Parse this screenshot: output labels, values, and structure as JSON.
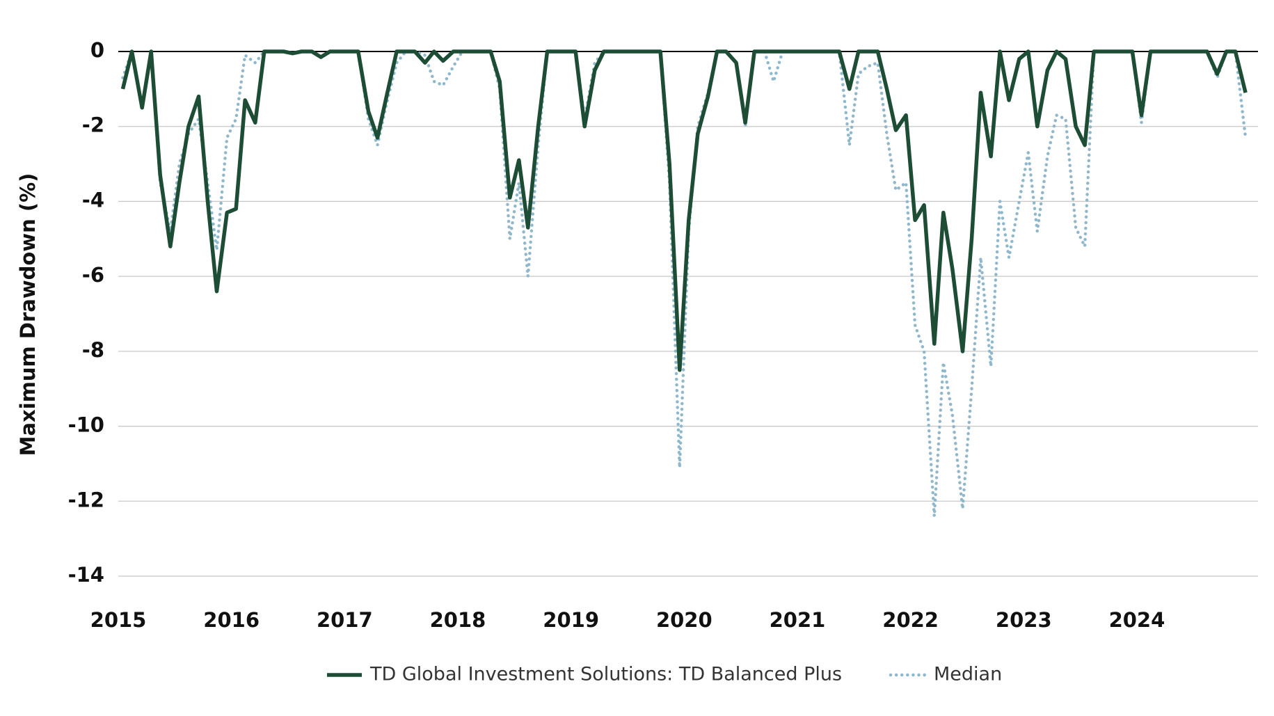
{
  "chart_data": {
    "type": "line",
    "y_label": "Maximum Drawdown (%)",
    "x": [
      2015.04,
      2015.12,
      2015.21,
      2015.29,
      2015.37,
      2015.46,
      2015.54,
      2015.62,
      2015.71,
      2015.79,
      2015.87,
      2015.96,
      2016.04,
      2016.12,
      2016.21,
      2016.29,
      2016.37,
      2016.46,
      2016.54,
      2016.62,
      2016.71,
      2016.79,
      2016.87,
      2016.96,
      2017.04,
      2017.12,
      2017.21,
      2017.29,
      2017.37,
      2017.46,
      2017.54,
      2017.62,
      2017.71,
      2017.79,
      2017.87,
      2017.96,
      2018.04,
      2018.12,
      2018.21,
      2018.29,
      2018.37,
      2018.46,
      2018.54,
      2018.62,
      2018.71,
      2018.79,
      2018.87,
      2018.96,
      2019.04,
      2019.12,
      2019.21,
      2019.29,
      2019.37,
      2019.46,
      2019.54,
      2019.62,
      2019.71,
      2019.79,
      2019.87,
      2019.96,
      2020.04,
      2020.12,
      2020.21,
      2020.29,
      2020.37,
      2020.46,
      2020.54,
      2020.62,
      2020.71,
      2020.79,
      2020.87,
      2020.96,
      2021.04,
      2021.12,
      2021.21,
      2021.29,
      2021.37,
      2021.46,
      2021.54,
      2021.62,
      2021.71,
      2021.79,
      2021.87,
      2021.96,
      2022.04,
      2022.12,
      2022.21,
      2022.29,
      2022.37,
      2022.46,
      2022.54,
      2022.62,
      2022.71,
      2022.79,
      2022.87,
      2022.96,
      2023.04,
      2023.12,
      2023.21,
      2023.29,
      2023.37,
      2023.46,
      2023.54,
      2023.62,
      2023.71,
      2023.79,
      2023.87,
      2023.96,
      2024.04,
      2024.12,
      2024.21,
      2024.29,
      2024.37,
      2024.46,
      2024.54,
      2024.62,
      2024.71,
      2024.79,
      2024.87,
      2024.96
    ],
    "series": [
      {
        "name": "TD Global Investment Solutions: TD Balanced Plus",
        "color": "#1e4d36",
        "style": "solid",
        "values": [
          -1.0,
          0,
          -1.5,
          0,
          -3.3,
          -5.2,
          -3.5,
          -2.0,
          -1.2,
          -4.0,
          -6.4,
          -4.3,
          -4.2,
          -1.3,
          -1.9,
          0,
          0,
          0,
          -0.05,
          0,
          0,
          -0.15,
          0,
          0,
          0,
          0,
          -1.6,
          -2.3,
          -1.2,
          0,
          0,
          0,
          -0.3,
          0,
          -0.25,
          0,
          0,
          0,
          0,
          0,
          -0.8,
          -3.9,
          -2.9,
          -4.7,
          -2.0,
          0,
          0,
          0,
          0,
          -2.0,
          -0.5,
          0,
          0,
          0,
          0,
          0,
          0,
          0,
          -3.0,
          -8.5,
          -4.5,
          -2.2,
          -1.2,
          0,
          0,
          -0.3,
          -1.9,
          0,
          0,
          0,
          0,
          0,
          0,
          0,
          0,
          0,
          0,
          -1.0,
          0,
          0,
          0,
          -1.0,
          -2.1,
          -1.7,
          -4.5,
          -4.1,
          -7.8,
          -4.3,
          -5.8,
          -8.0,
          -5.0,
          -1.1,
          -2.8,
          0,
          -1.3,
          -0.2,
          0,
          -2.0,
          -0.5,
          0,
          -0.2,
          -2.0,
          -2.5,
          0,
          0,
          0,
          0,
          0,
          -1.7,
          0,
          0,
          0,
          0,
          0,
          0,
          0,
          -0.6,
          0,
          0,
          -1.1
        ]
      },
      {
        "name": "Median",
        "color": "#8fb8cc",
        "style": "dotted",
        "values": [
          -0.7,
          0,
          -1.5,
          0,
          -3.5,
          -4.8,
          -3.0,
          -2.2,
          -1.8,
          -3.5,
          -5.3,
          -2.3,
          -1.8,
          -0.1,
          -0.3,
          0,
          0,
          0,
          -0.05,
          0,
          0,
          -0.15,
          0,
          0,
          0,
          0,
          -1.8,
          -2.5,
          -1.4,
          -0.3,
          0,
          0,
          -0.1,
          -0.8,
          -0.9,
          -0.4,
          0,
          0,
          0,
          0,
          -1.0,
          -5.0,
          -3.5,
          -6.0,
          -2.5,
          0,
          0,
          0,
          0,
          -1.8,
          -0.3,
          0,
          0,
          0,
          0,
          0,
          0,
          0,
          -3.5,
          -11.1,
          -4.8,
          -2.0,
          -1.1,
          0,
          0,
          -0.3,
          -2.0,
          0,
          0,
          -0.8,
          0,
          0,
          0,
          0,
          0,
          0,
          0,
          -2.5,
          -0.6,
          -0.4,
          -0.3,
          -2.2,
          -3.7,
          -3.5,
          -7.3,
          -8.0,
          -12.4,
          -8.3,
          -9.7,
          -12.2,
          -9.0,
          -5.5,
          -8.4,
          -4.0,
          -5.5,
          -4.0,
          -2.7,
          -4.8,
          -2.8,
          -1.7,
          -1.8,
          -4.7,
          -5.2,
          0,
          0,
          0,
          0,
          0,
          -1.9,
          0,
          0,
          0,
          0,
          0,
          0,
          0,
          -0.7,
          0,
          0,
          -2.3
        ]
      }
    ],
    "xlim": [
      2015,
      2025.07
    ],
    "xticks": [
      2015,
      2016,
      2017,
      2018,
      2019,
      2020,
      2021,
      2022,
      2023,
      2024
    ],
    "ylim": [
      -14,
      0
    ],
    "yticks": [
      0,
      -2,
      -4,
      -6,
      -8,
      -10,
      -12,
      -14
    ],
    "grid": true,
    "legend": "bottom"
  }
}
